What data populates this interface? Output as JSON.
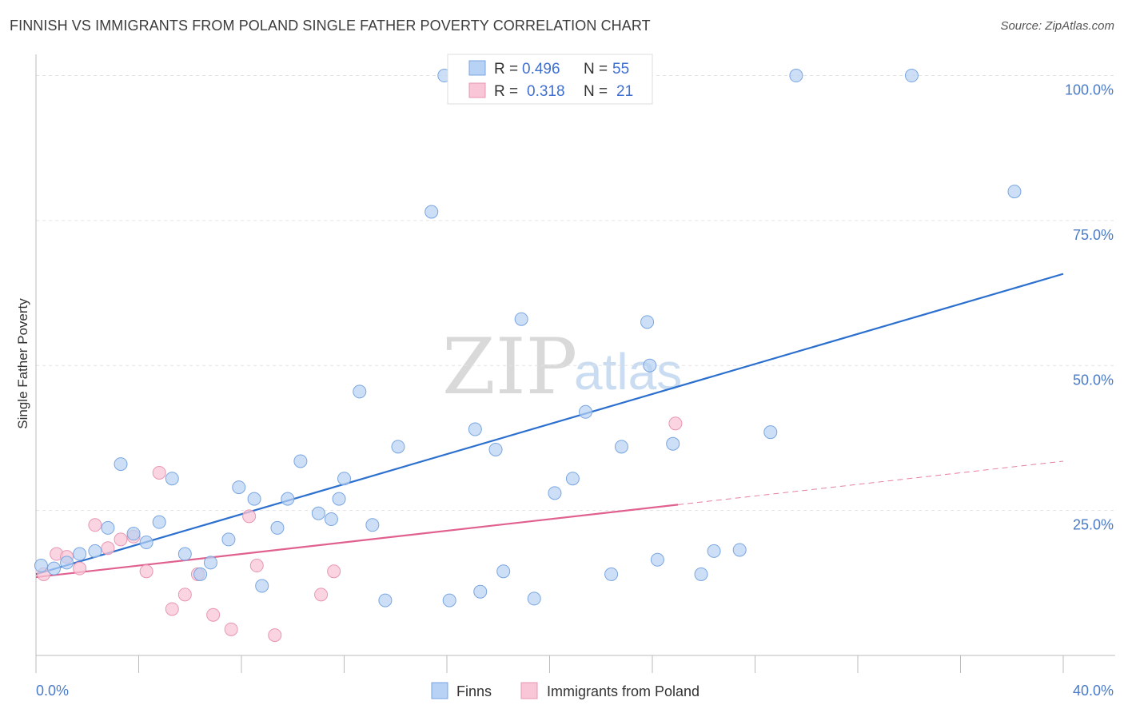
{
  "title": "FINNISH VS IMMIGRANTS FROM POLAND SINGLE FATHER POVERTY CORRELATION CHART",
  "source": "Source: ZipAtlas.com",
  "watermark": {
    "zip": "ZIP",
    "atlas": "atlas"
  },
  "colors": {
    "finns_fill": "#b7d2f4",
    "finns_stroke": "#7aa6e0",
    "finns_line": "#2b6fcf",
    "poland_fill": "#f8c6d6",
    "poland_stroke": "#e897b3",
    "poland_line": "#e0608f",
    "grid": "#e3e3e3",
    "axis_text": "#4a7bc8"
  },
  "legend": {
    "r_label": "R =",
    "n_label": "N =",
    "rows": [
      {
        "r": "0.496",
        "n": "55"
      },
      {
        "r": "0.318",
        "n": "21"
      }
    ]
  },
  "chart_data": {
    "type": "scatter",
    "title": "FINNISH VS IMMIGRANTS FROM POLAND SINGLE FATHER POVERTY CORRELATION CHART",
    "xlabel": "",
    "ylabel": "Single Father Poverty",
    "xlim": [
      0,
      40
    ],
    "ylim": [
      0,
      102
    ],
    "x_tick_labels": [
      "0.0%",
      "40.0%"
    ],
    "y_ticks": [
      25,
      50,
      75,
      100
    ],
    "y_tick_labels": [
      "25.0%",
      "50.0%",
      "75.0%",
      "100.0%"
    ],
    "grid": true,
    "legend_position": "top-center",
    "series": [
      {
        "name": "Finns",
        "r": 0.496,
        "n": 55,
        "trend": {
          "x": [
            0,
            40
          ],
          "y": [
            14.0,
            65.8
          ]
        },
        "points": [
          [
            0.2,
            15.5
          ],
          [
            0.7,
            15.0
          ],
          [
            1.2,
            16.0
          ],
          [
            1.7,
            17.5
          ],
          [
            2.3,
            18.0
          ],
          [
            2.8,
            22.0
          ],
          [
            3.3,
            33.0
          ],
          [
            3.8,
            21.0
          ],
          [
            4.3,
            19.5
          ],
          [
            4.8,
            23.0
          ],
          [
            5.3,
            30.5
          ],
          [
            5.8,
            17.5
          ],
          [
            6.4,
            14.0
          ],
          [
            6.8,
            16.0
          ],
          [
            7.5,
            20.0
          ],
          [
            7.9,
            29.0
          ],
          [
            8.5,
            27.0
          ],
          [
            8.8,
            12.0
          ],
          [
            9.4,
            22.0
          ],
          [
            9.8,
            27.0
          ],
          [
            10.3,
            33.5
          ],
          [
            11.0,
            24.5
          ],
          [
            11.5,
            23.5
          ],
          [
            11.8,
            27.0
          ],
          [
            12.0,
            30.5
          ],
          [
            12.6,
            45.5
          ],
          [
            13.1,
            22.5
          ],
          [
            13.6,
            9.5
          ],
          [
            14.1,
            36.0
          ],
          [
            15.4,
            76.5
          ],
          [
            15.9,
            100.0
          ],
          [
            16.1,
            9.5
          ],
          [
            17.1,
            39.0
          ],
          [
            17.3,
            11.0
          ],
          [
            17.9,
            35.5
          ],
          [
            18.2,
            14.5
          ],
          [
            18.9,
            58.0
          ],
          [
            19.4,
            9.8
          ],
          [
            20.2,
            28.0
          ],
          [
            20.9,
            30.5
          ],
          [
            21.4,
            42.0
          ],
          [
            21.9,
            100.0
          ],
          [
            22.4,
            14.0
          ],
          [
            22.8,
            36.0
          ],
          [
            23.8,
            57.5
          ],
          [
            24.2,
            16.5
          ],
          [
            24.8,
            36.5
          ],
          [
            25.9,
            14.0
          ],
          [
            26.4,
            18.0
          ],
          [
            27.4,
            18.2
          ],
          [
            28.6,
            38.5
          ],
          [
            29.6,
            100.0
          ],
          [
            34.1,
            100.0
          ],
          [
            38.1,
            80.0
          ],
          [
            23.9,
            50.0
          ]
        ]
      },
      {
        "name": "Immigrants from Poland",
        "r": 0.318,
        "n": 21,
        "trend": {
          "x": [
            0,
            25
          ],
          "y": [
            13.5,
            26.0
          ]
        },
        "trend_dashed": {
          "x": [
            25,
            40
          ],
          "y": [
            26.0,
            33.5
          ]
        },
        "points": [
          [
            0.3,
            14.0
          ],
          [
            0.8,
            17.5
          ],
          [
            1.2,
            17.0
          ],
          [
            1.7,
            15.0
          ],
          [
            2.3,
            22.5
          ],
          [
            2.8,
            18.5
          ],
          [
            3.3,
            20.0
          ],
          [
            3.8,
            20.5
          ],
          [
            4.3,
            14.5
          ],
          [
            4.8,
            31.5
          ],
          [
            5.3,
            8.0
          ],
          [
            5.8,
            10.5
          ],
          [
            6.3,
            14.0
          ],
          [
            6.9,
            7.0
          ],
          [
            7.6,
            4.5
          ],
          [
            8.3,
            24.0
          ],
          [
            8.6,
            15.5
          ],
          [
            9.3,
            3.5
          ],
          [
            11.1,
            10.5
          ],
          [
            11.6,
            14.5
          ],
          [
            24.9,
            40.0
          ]
        ]
      }
    ]
  },
  "bottom_legend": [
    "Finns",
    "Immigrants from Poland"
  ]
}
